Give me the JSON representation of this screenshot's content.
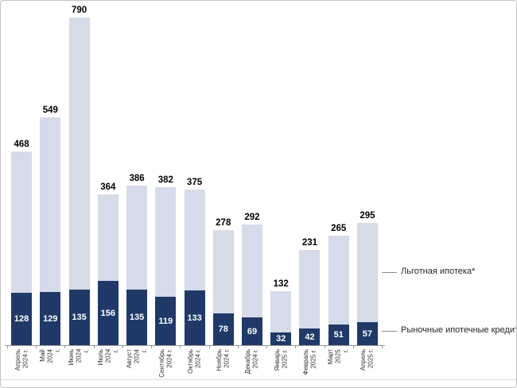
{
  "chart_data": {
    "type": "bar",
    "stacked": true,
    "title": "",
    "xlabel": "",
    "ylabel": "",
    "ylim": [
      0,
      800
    ],
    "grid": false,
    "legend_position": "right-callouts",
    "categories": [
      "Апрель\n2024 г.",
      "Май\n2024\nг.",
      "Июнь\n2024\nг.",
      "Июль\n2024\nг.",
      "Август\n2024\nг.",
      "Сентябрь\n2024 г.",
      "Октябрь\n2024 г.",
      "Ноябрь\n2024 г.",
      "Декабрь\n2024 г.",
      "Январь\n2025 г.",
      "Февраль\n2025 г.",
      "Март\n2025\nг.",
      "Апрель\n2025 г."
    ],
    "series": [
      {
        "name": "Рыночные ипотечные кредиты",
        "color": "#1F3A68",
        "label_color": "#FFFFFF",
        "values": [
          128,
          129,
          135,
          156,
          135,
          119,
          133,
          78,
          69,
          32,
          42,
          51,
          57
        ]
      },
      {
        "name": "Льготная ипотека*",
        "color": "#D6DBE9",
        "values": [
          340,
          420,
          655,
          208,
          251,
          263,
          242,
          200,
          223,
          100,
          189,
          214,
          238
        ]
      }
    ],
    "totals": [
      468,
      549,
      790,
      364,
      386,
      382,
      375,
      278,
      292,
      132,
      231,
      265,
      295
    ]
  },
  "colors": {
    "axis": "#969696",
    "callout_line": "#8C8C8C",
    "total_label": "#000000",
    "x_label": "#333333",
    "frame_border": "#C4C4C4",
    "bottom_rule": "#D9D9D9"
  }
}
